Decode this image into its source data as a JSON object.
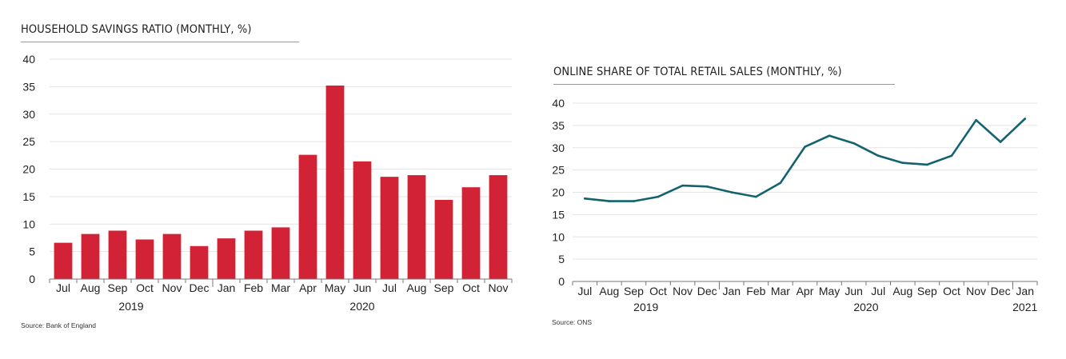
{
  "chart_data": [
    {
      "type": "bar",
      "title": "HOUSEHOLD SAVINGS RATIO (MONTHLY, %)",
      "source": "Source: Bank of England",
      "categories": [
        "Jul",
        "Aug",
        "Sep",
        "Oct",
        "Nov",
        "Dec",
        "Jan",
        "Feb",
        "Mar",
        "Apr",
        "May",
        "Jun",
        "Jul",
        "Aug",
        "Sep",
        "Oct",
        "Nov"
      ],
      "year_labels": [
        "2019",
        "2020"
      ],
      "values": [
        6.6,
        8.2,
        8.8,
        7.2,
        8.2,
        6.0,
        7.4,
        8.8,
        9.4,
        22.6,
        35.2,
        21.4,
        18.6,
        18.9,
        14.4,
        16.7,
        18.9
      ],
      "ylim": [
        0,
        40
      ],
      "yticks": [
        0,
        5,
        10,
        15,
        20,
        25,
        30,
        35,
        40
      ],
      "color": "#d12236",
      "grid": true
    },
    {
      "type": "line",
      "title": "ONLINE SHARE OF TOTAL RETAIL SALES (MONTHLY, %)",
      "source": "Source: ONS",
      "categories": [
        "Jul",
        "Aug",
        "Sep",
        "Oct",
        "Nov",
        "Dec",
        "Jan",
        "Feb",
        "Mar",
        "Apr",
        "May",
        "Jun",
        "Jul",
        "Aug",
        "Sep",
        "Oct",
        "Nov",
        "Dec",
        "Jan"
      ],
      "year_labels": [
        "2019",
        "2020",
        "2021"
      ],
      "values": [
        18.6,
        18.0,
        18.0,
        19.0,
        21.5,
        21.3,
        20.0,
        19.0,
        22.1,
        30.2,
        32.7,
        31.0,
        28.2,
        26.6,
        26.2,
        28.2,
        36.2,
        31.3,
        36.5
      ],
      "ylim": [
        0,
        40
      ],
      "yticks": [
        0,
        5,
        10,
        15,
        20,
        25,
        30,
        35,
        40
      ],
      "color": "#13636e",
      "grid": true
    }
  ]
}
